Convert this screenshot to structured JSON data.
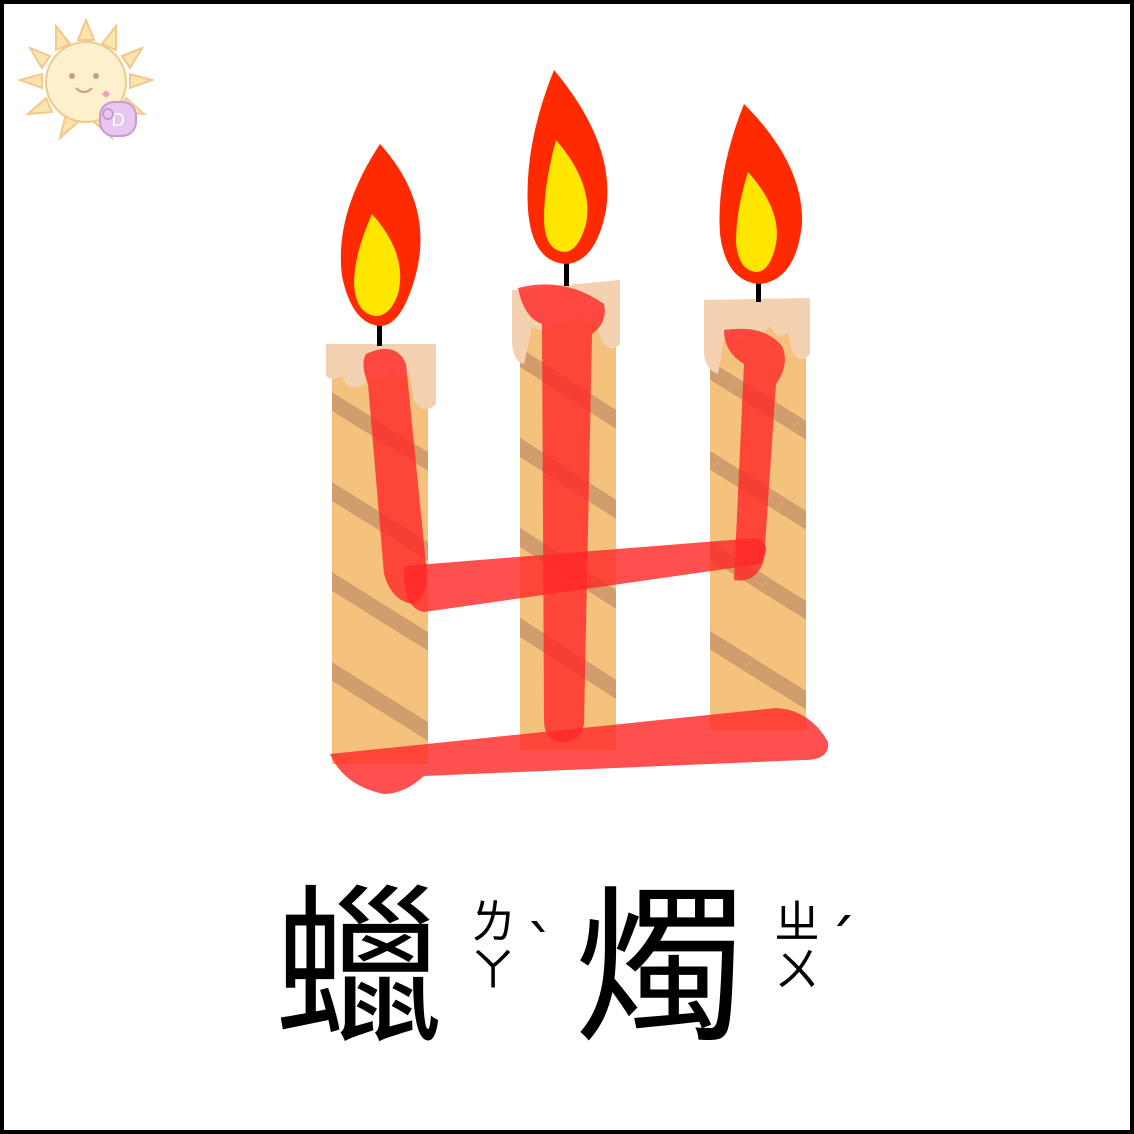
{
  "card": {
    "big_letter": "ㄓ",
    "big_letter_color": "#FF3B3B",
    "candle_color": "#F5C27D",
    "flame_outer_color": "#FF2A00",
    "flame_inner_color": "#FFE600"
  },
  "word": {
    "char1": "蠟",
    "char1_zhuyin": [
      "ㄌ",
      "ㄚ"
    ],
    "char1_tone": "ˋ",
    "char2": "燭",
    "char2_zhuyin": [
      "ㄓ",
      "ㄨ"
    ],
    "char2_tone": "ˊ"
  },
  "logo": {
    "icon": "sun-mascot-icon"
  }
}
